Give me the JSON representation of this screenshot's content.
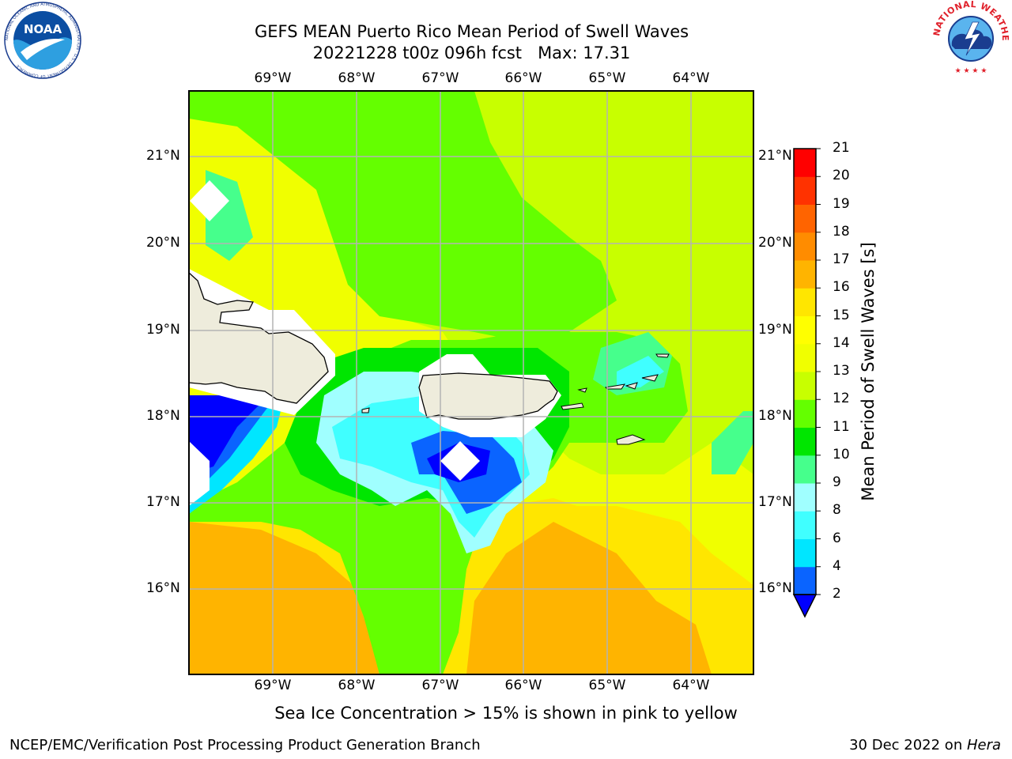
{
  "header": {
    "title_line1": "GEFS MEAN Puerto Rico Mean Period of Swell Waves",
    "title_line2": "20221228 t00z 096h fcst   Max: 17.31"
  },
  "logos": {
    "noaa_text": "NOAA",
    "noaa_ring_text": "NATIONAL OCEANIC AND ATMOSPHERIC ADMINISTRATION · U.S. DEPARTMENT OF COMMERCE",
    "nws_ring_text": "NATIONAL WEATHER SERVICE"
  },
  "map": {
    "lon_labels": [
      "69°W",
      "68°W",
      "67°W",
      "66°W",
      "65°W",
      "64°W"
    ],
    "lat_labels": [
      "21°N",
      "20°N",
      "19°N",
      "18°N",
      "17°N",
      "16°N"
    ],
    "extent": {
      "lon_min": -70.0,
      "lon_max": -63.25,
      "lat_min": 15.0,
      "lat_max": 21.75
    }
  },
  "colorbar": {
    "label": "Mean Period of Swell Waves [s]",
    "ticks": [
      "2",
      "4",
      "6",
      "8",
      "9",
      "10",
      "11",
      "12",
      "13",
      "14",
      "15",
      "16",
      "17",
      "18",
      "19",
      "20",
      "21"
    ],
    "colors": [
      "#0000ff",
      "#0a64ff",
      "#00e6ff",
      "#40ffff",
      "#a0ffff",
      "#46ff8c",
      "#00e600",
      "#64ff00",
      "#c8ff00",
      "#f0ff00",
      "#ffff00",
      "#ffe600",
      "#ffb400",
      "#ff8c00",
      "#ff6400",
      "#ff3200",
      "#ff0000"
    ],
    "extend_color": "#0000ff"
  },
  "note": "Sea Ice Concentration > 15% is shown in pink to yellow",
  "footer": {
    "left": "NCEP/EMC/Verification Post Processing Product Generation Branch",
    "right_date": "30 Dec 2022 on ",
    "right_host": "Hera"
  },
  "colors": {
    "land": "#eeecdc",
    "grid": "#b4b4b4",
    "ocean_green": "#64ff00",
    "ocean_yellow_green": "#c8ff00",
    "ocean_orange": "#ffb400"
  }
}
